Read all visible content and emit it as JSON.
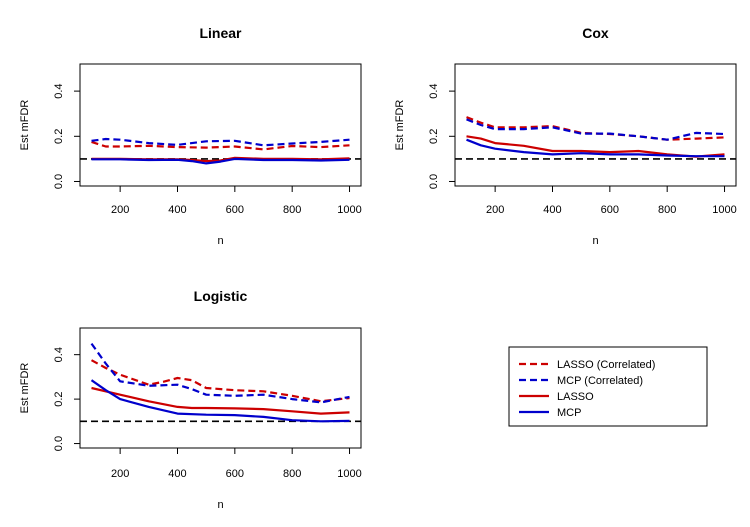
{
  "chart_data": [
    {
      "type": "line",
      "title": "Linear",
      "xlabel": "n",
      "ylabel": "Est mFDR",
      "xlim": [
        60,
        1040
      ],
      "ylim": [
        -0.02,
        0.52
      ],
      "xticks": [
        200,
        400,
        600,
        800,
        1000
      ],
      "xtick_labels": [
        "200",
        "400",
        "600",
        "800",
        "1000"
      ],
      "yticks": [
        0.0,
        0.2,
        0.4
      ],
      "ytick_labels": [
        "0.0",
        "0.2",
        "0.4"
      ],
      "reference_line": 0.1,
      "series": [
        {
          "name": "LASSO (Correlated)",
          "color": "#cc0000",
          "dash": true,
          "x": [
            100,
            150,
            200,
            300,
            400,
            500,
            600,
            700,
            800,
            900,
            1000
          ],
          "values": [
            0.175,
            0.155,
            0.155,
            0.158,
            0.152,
            0.15,
            0.155,
            0.142,
            0.157,
            0.152,
            0.16
          ]
        },
        {
          "name": "MCP (Correlated)",
          "color": "#0000cc",
          "dash": true,
          "x": [
            100,
            150,
            200,
            300,
            400,
            500,
            600,
            700,
            800,
            900,
            1000
          ],
          "values": [
            0.18,
            0.188,
            0.185,
            0.17,
            0.162,
            0.178,
            0.18,
            0.16,
            0.168,
            0.175,
            0.185
          ]
        },
        {
          "name": "LASSO",
          "color": "#cc0000",
          "dash": false,
          "x": [
            100,
            200,
            300,
            400,
            450,
            500,
            550,
            600,
            700,
            800,
            900,
            1000
          ],
          "values": [
            0.1,
            0.1,
            0.098,
            0.098,
            0.095,
            0.09,
            0.093,
            0.105,
            0.1,
            0.1,
            0.098,
            0.102
          ]
        },
        {
          "name": "MCP",
          "color": "#0000cc",
          "dash": false,
          "x": [
            100,
            200,
            300,
            400,
            450,
            500,
            550,
            600,
            700,
            800,
            900,
            1000
          ],
          "values": [
            0.098,
            0.098,
            0.095,
            0.096,
            0.09,
            0.08,
            0.088,
            0.1,
            0.095,
            0.095,
            0.093,
            0.096
          ]
        }
      ]
    },
    {
      "type": "line",
      "title": "Cox",
      "xlabel": "n",
      "ylabel": "Est mFDR",
      "xlim": [
        60,
        1040
      ],
      "ylim": [
        -0.02,
        0.52
      ],
      "xticks": [
        200,
        400,
        600,
        800,
        1000
      ],
      "xtick_labels": [
        "200",
        "400",
        "600",
        "800",
        "1000"
      ],
      "yticks": [
        0.0,
        0.2,
        0.4
      ],
      "ytick_labels": [
        "0.0",
        "0.2",
        "0.4"
      ],
      "reference_line": 0.1,
      "series": [
        {
          "name": "LASSO (Correlated)",
          "color": "#cc0000",
          "dash": true,
          "x": [
            100,
            150,
            200,
            300,
            400,
            500,
            600,
            700,
            800,
            900,
            1000
          ],
          "values": [
            0.285,
            0.26,
            0.24,
            0.24,
            0.245,
            0.215,
            0.21,
            0.2,
            0.185,
            0.19,
            0.195
          ]
        },
        {
          "name": "MCP (Correlated)",
          "color": "#0000cc",
          "dash": true,
          "x": [
            100,
            150,
            200,
            300,
            400,
            500,
            600,
            700,
            800,
            900,
            1000
          ],
          "values": [
            0.275,
            0.25,
            0.232,
            0.232,
            0.24,
            0.212,
            0.212,
            0.2,
            0.185,
            0.215,
            0.21
          ]
        },
        {
          "name": "LASSO",
          "color": "#cc0000",
          "dash": false,
          "x": [
            100,
            150,
            200,
            300,
            400,
            500,
            600,
            700,
            800,
            900,
            1000
          ],
          "values": [
            0.2,
            0.19,
            0.17,
            0.158,
            0.135,
            0.135,
            0.13,
            0.135,
            0.12,
            0.11,
            0.12
          ]
        },
        {
          "name": "MCP",
          "color": "#0000cc",
          "dash": false,
          "x": [
            100,
            150,
            200,
            300,
            400,
            500,
            600,
            700,
            800,
            900,
            1000
          ],
          "values": [
            0.185,
            0.16,
            0.145,
            0.13,
            0.12,
            0.125,
            0.12,
            0.12,
            0.115,
            0.112,
            0.112
          ]
        }
      ]
    },
    {
      "type": "line",
      "title": "Logistic",
      "xlabel": "n",
      "ylabel": "Est mFDR",
      "xlim": [
        60,
        1040
      ],
      "ylim": [
        -0.02,
        0.52
      ],
      "xticks": [
        200,
        400,
        600,
        800,
        1000
      ],
      "xtick_labels": [
        "200",
        "400",
        "600",
        "800",
        "1000"
      ],
      "yticks": [
        0.0,
        0.2,
        0.4
      ],
      "ytick_labels": [
        "0.0",
        "0.2",
        "0.4"
      ],
      "reference_line": 0.1,
      "series": [
        {
          "name": "LASSO (Correlated)",
          "color": "#cc0000",
          "dash": true,
          "x": [
            100,
            150,
            200,
            300,
            350,
            400,
            450,
            500,
            600,
            700,
            800,
            900,
            1000
          ],
          "values": [
            0.375,
            0.34,
            0.31,
            0.265,
            0.278,
            0.295,
            0.285,
            0.25,
            0.24,
            0.235,
            0.215,
            0.19,
            0.205
          ]
        },
        {
          "name": "MCP (Correlated)",
          "color": "#0000cc",
          "dash": true,
          "x": [
            100,
            150,
            200,
            300,
            400,
            450,
            500,
            600,
            700,
            800,
            900,
            1000
          ],
          "values": [
            0.45,
            0.36,
            0.28,
            0.26,
            0.265,
            0.245,
            0.22,
            0.215,
            0.22,
            0.2,
            0.185,
            0.21
          ]
        },
        {
          "name": "LASSO",
          "color": "#cc0000",
          "dash": false,
          "x": [
            100,
            200,
            300,
            400,
            450,
            500,
            600,
            700,
            800,
            900,
            1000
          ],
          "values": [
            0.25,
            0.22,
            0.19,
            0.165,
            0.16,
            0.16,
            0.158,
            0.155,
            0.145,
            0.135,
            0.14
          ]
        },
        {
          "name": "MCP",
          "color": "#0000cc",
          "dash": false,
          "x": [
            100,
            150,
            200,
            300,
            400,
            500,
            600,
            700,
            800,
            900,
            1000
          ],
          "values": [
            0.285,
            0.24,
            0.2,
            0.165,
            0.135,
            0.13,
            0.128,
            0.12,
            0.105,
            0.1,
            0.102
          ]
        }
      ]
    }
  ],
  "legend": {
    "items": [
      {
        "label": "LASSO (Correlated)",
        "color": "#cc0000",
        "dash": true
      },
      {
        "label": "MCP (Correlated)",
        "color": "#0000cc",
        "dash": true
      },
      {
        "label": "LASSO",
        "color": "#cc0000",
        "dash": false
      },
      {
        "label": "MCP",
        "color": "#0000cc",
        "dash": false
      }
    ]
  }
}
